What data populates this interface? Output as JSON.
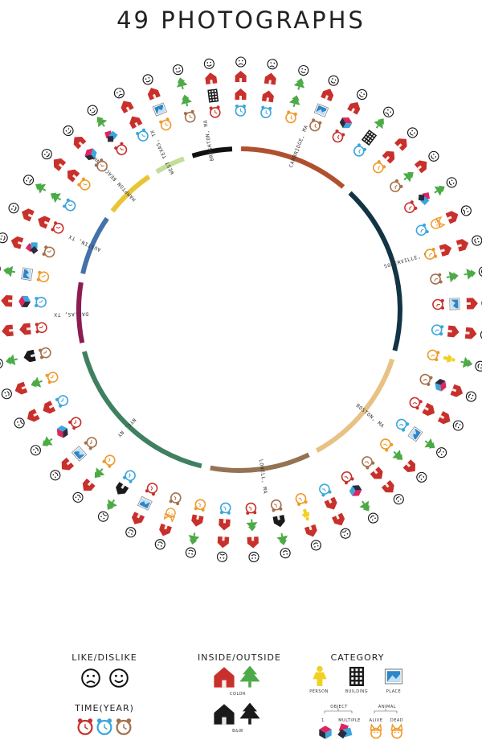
{
  "title": "49 PHOTOGRAPHS",
  "colors": {
    "red": "#c8302b",
    "green": "#4caa47",
    "black": "#1a1a1a",
    "blue": "#3aa6dc",
    "orange": "#ef9a2a",
    "brown": "#a5704b",
    "yellow": "#f0d021",
    "magenta": "#e0245f",
    "ring_text": "#333333"
  },
  "ring_segments": [
    {
      "label": "BRIGHTON, MA",
      "color": "#111111"
    },
    {
      "label": "CAMBRIDGE, MA",
      "color": "#b0502e"
    },
    {
      "label": "SOMERVILLE, MA",
      "color": "#123444"
    },
    {
      "label": "BOSTON, MA",
      "color": "#e8c284"
    },
    {
      "label": "LOWELL, MA",
      "color": "#947353"
    },
    {
      "label": "NYC, NY",
      "color": "#3f8060"
    },
    {
      "label": "DALLAS, TX",
      "color": "#8d1b54"
    },
    {
      "label": "AUSTIN, TX",
      "color": "#4372ab"
    },
    {
      "label": "HAMPTON BEACH, NH",
      "color": "#e8c534"
    },
    {
      "label": "WEST TEXAS, TX",
      "color": "#c4dd9a"
    }
  ],
  "legend": {
    "like_dislike": {
      "title": "LIKE/DISLIKE"
    },
    "time_year": {
      "title": "TIME(YEAR)",
      "years": [
        "'10",
        "'11",
        "'12"
      ]
    },
    "inside_outside": {
      "title": "INSIDE/OUTSIDE",
      "color_label": "COLOR",
      "bw_label": "B&W"
    },
    "category": {
      "title": "CATEGORY",
      "person": "PERSON",
      "building": "BUILDING",
      "place": "PLACE",
      "object": "OBJECT",
      "single": "1",
      "multiple": "MULTIPLE",
      "animal": "ANIMAL",
      "alive": "ALIVE",
      "dead": "DEAD"
    }
  }
}
